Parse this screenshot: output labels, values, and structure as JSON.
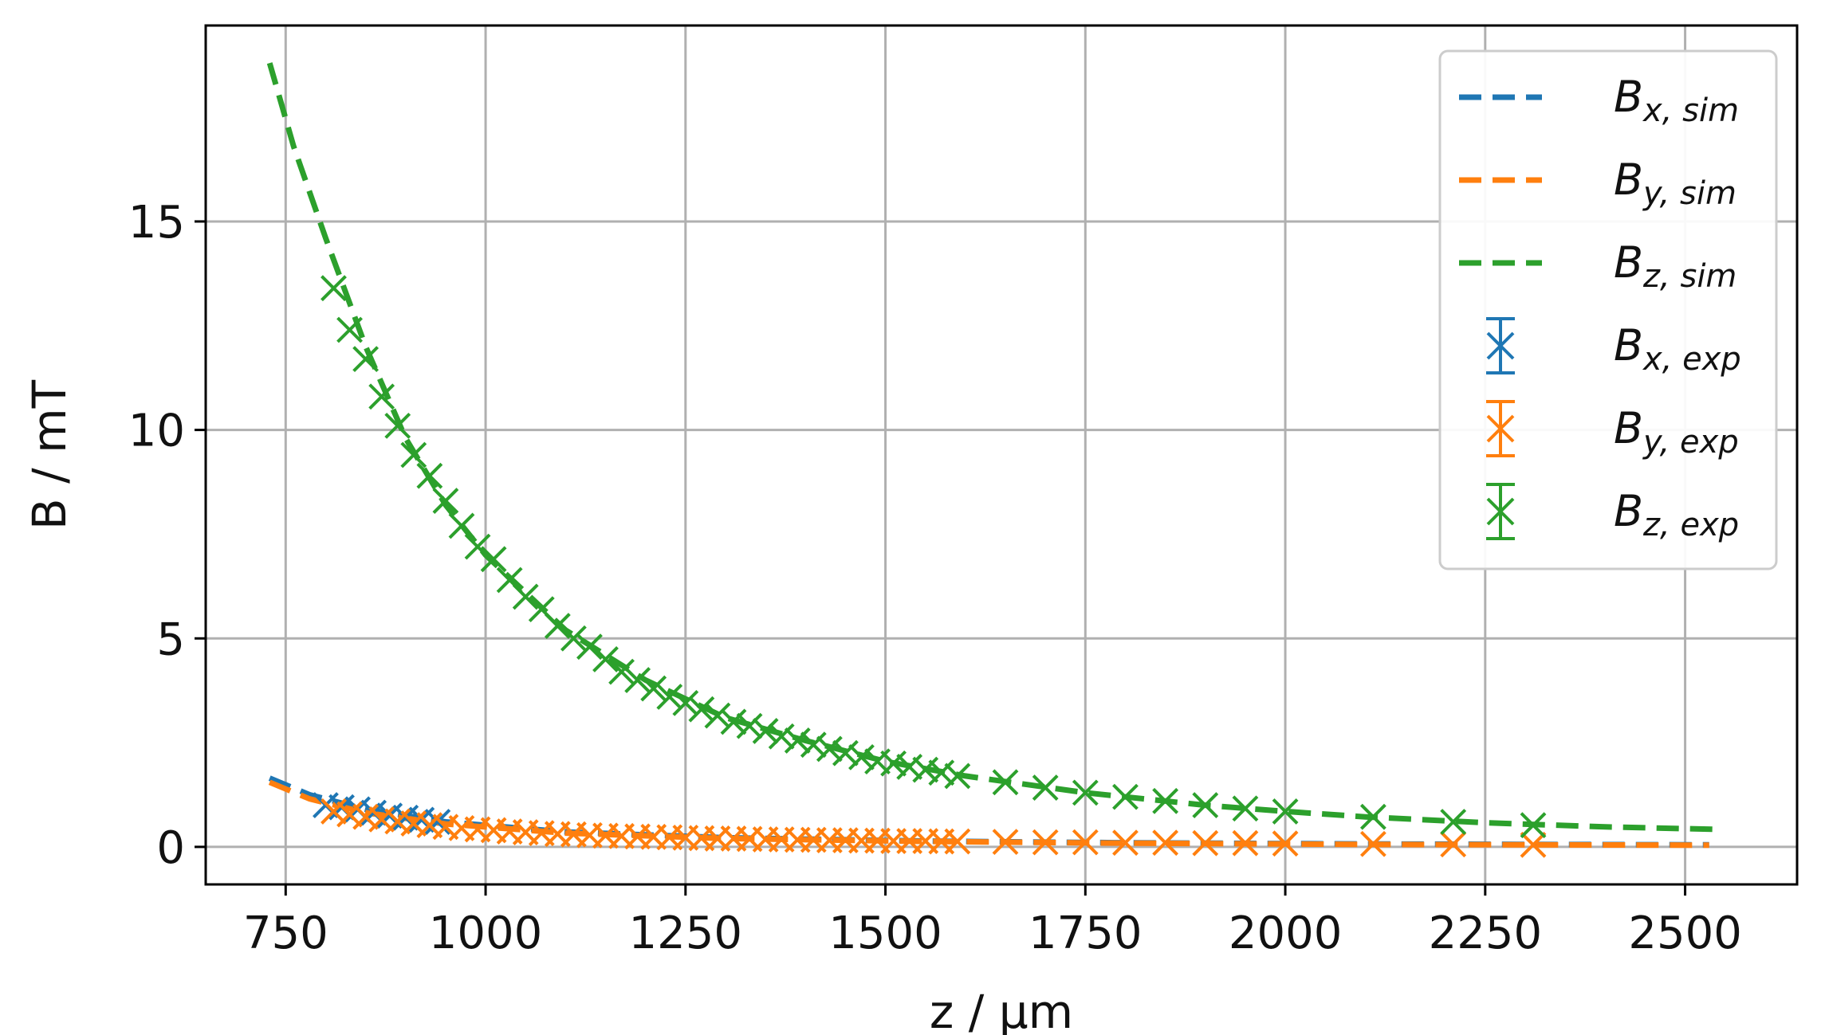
{
  "chart_data": {
    "type": "line",
    "xlabel": "z / μm",
    "ylabel": "B / mT",
    "xlim": [
      650,
      2640
    ],
    "ylim": [
      -0.9,
      19.7
    ],
    "xticks": [
      750,
      1000,
      1250,
      1500,
      1750,
      2000,
      2250,
      2500
    ],
    "yticks": [
      0,
      5,
      10,
      15
    ],
    "grid": true,
    "legend_position": "top-right",
    "colors": {
      "x": "#1f77b4",
      "y": "#ff7f0e",
      "z": "#2ca02c"
    },
    "series": [
      {
        "name": "Bx, sim",
        "label_main": "B",
        "label_sub": "x, sim",
        "style": "dashed",
        "color": "#1f77b4",
        "x": [
          730,
          780,
          850,
          950,
          1100,
          1300,
          1550,
          1800,
          2100,
          2530
        ],
        "y": [
          1.65,
          1.25,
          0.9,
          0.6,
          0.36,
          0.22,
          0.14,
          0.1,
          0.07,
          0.05
        ]
      },
      {
        "name": "By, sim",
        "label_main": "B",
        "label_sub": "y, sim",
        "style": "dashed",
        "color": "#ff7f0e",
        "x": [
          730,
          780,
          850,
          950,
          1100,
          1300,
          1550,
          1800,
          2100,
          2530
        ],
        "y": [
          1.55,
          1.15,
          0.82,
          0.55,
          0.33,
          0.2,
          0.13,
          0.09,
          0.06,
          0.04
        ]
      },
      {
        "name": "Bz, sim",
        "label_main": "B",
        "label_sub": "z, sim",
        "style": "dashed",
        "color": "#2ca02c",
        "x": [
          730,
          760,
          800,
          850,
          900,
          950,
          1000,
          1100,
          1200,
          1300,
          1400,
          1500,
          1600,
          1750,
          1900,
          2000,
          2100,
          2250,
          2400,
          2540
        ],
        "y": [
          18.8,
          16.8,
          14.6,
          12.0,
          9.8,
          8.2,
          7.0,
          5.2,
          4.0,
          3.1,
          2.55,
          2.05,
          1.7,
          1.3,
          1.0,
          0.85,
          0.72,
          0.58,
          0.48,
          0.42
        ]
      },
      {
        "name": "Bx, exp",
        "label_main": "B",
        "label_sub": "x, exp",
        "style": "marker-x",
        "color": "#1f77b4",
        "x": [
          800,
          820,
          840,
          860,
          880,
          900,
          920,
          940
        ],
        "y": [
          1.0,
          0.95,
          0.9,
          0.82,
          0.75,
          0.7,
          0.65,
          0.6
        ]
      },
      {
        "name": "By, exp",
        "label_main": "B",
        "label_sub": "y, exp",
        "style": "marker-x",
        "color": "#ff7f0e",
        "x": [
          810,
          830,
          850,
          870,
          890,
          910,
          930,
          950,
          970,
          990,
          1010,
          1030,
          1050,
          1070,
          1090,
          1110,
          1130,
          1150,
          1170,
          1190,
          1210,
          1230,
          1250,
          1270,
          1290,
          1310,
          1330,
          1350,
          1370,
          1390,
          1410,
          1430,
          1450,
          1470,
          1490,
          1510,
          1530,
          1550,
          1570,
          1590,
          1650,
          1700,
          1750,
          1800,
          1850,
          1900,
          1950,
          2000,
          2110,
          2210,
          2310
        ],
        "y": [
          0.85,
          0.78,
          0.72,
          0.66,
          0.61,
          0.56,
          0.52,
          0.48,
          0.45,
          0.42,
          0.4,
          0.37,
          0.35,
          0.33,
          0.31,
          0.3,
          0.28,
          0.27,
          0.26,
          0.25,
          0.24,
          0.23,
          0.22,
          0.21,
          0.2,
          0.2,
          0.19,
          0.18,
          0.18,
          0.17,
          0.17,
          0.16,
          0.16,
          0.15,
          0.15,
          0.14,
          0.14,
          0.14,
          0.13,
          0.13,
          0.12,
          0.11,
          0.11,
          0.1,
          0.1,
          0.09,
          0.09,
          0.08,
          0.07,
          0.06,
          0.05
        ]
      },
      {
        "name": "Bz, exp",
        "label_main": "B",
        "label_sub": "z, exp",
        "style": "marker-x",
        "color": "#2ca02c",
        "x": [
          810,
          830,
          850,
          870,
          890,
          910,
          930,
          950,
          970,
          990,
          1010,
          1030,
          1050,
          1070,
          1090,
          1110,
          1130,
          1150,
          1170,
          1190,
          1210,
          1230,
          1250,
          1270,
          1290,
          1310,
          1330,
          1350,
          1370,
          1390,
          1410,
          1430,
          1450,
          1470,
          1490,
          1510,
          1530,
          1550,
          1570,
          1590,
          1650,
          1700,
          1750,
          1800,
          1850,
          1900,
          1950,
          2000,
          2110,
          2210,
          2310
        ],
        "y": [
          13.4,
          12.4,
          11.7,
          10.8,
          10.1,
          9.4,
          8.9,
          8.3,
          7.7,
          7.2,
          6.9,
          6.4,
          6.0,
          5.7,
          5.3,
          5.0,
          4.8,
          4.5,
          4.2,
          4.0,
          3.8,
          3.6,
          3.45,
          3.3,
          3.15,
          3.0,
          2.9,
          2.78,
          2.65,
          2.55,
          2.45,
          2.35,
          2.25,
          2.15,
          2.05,
          2.0,
          1.92,
          1.85,
          1.78,
          1.7,
          1.55,
          1.42,
          1.3,
          1.2,
          1.1,
          1.0,
          0.92,
          0.85,
          0.72,
          0.6,
          0.52
        ]
      }
    ]
  }
}
